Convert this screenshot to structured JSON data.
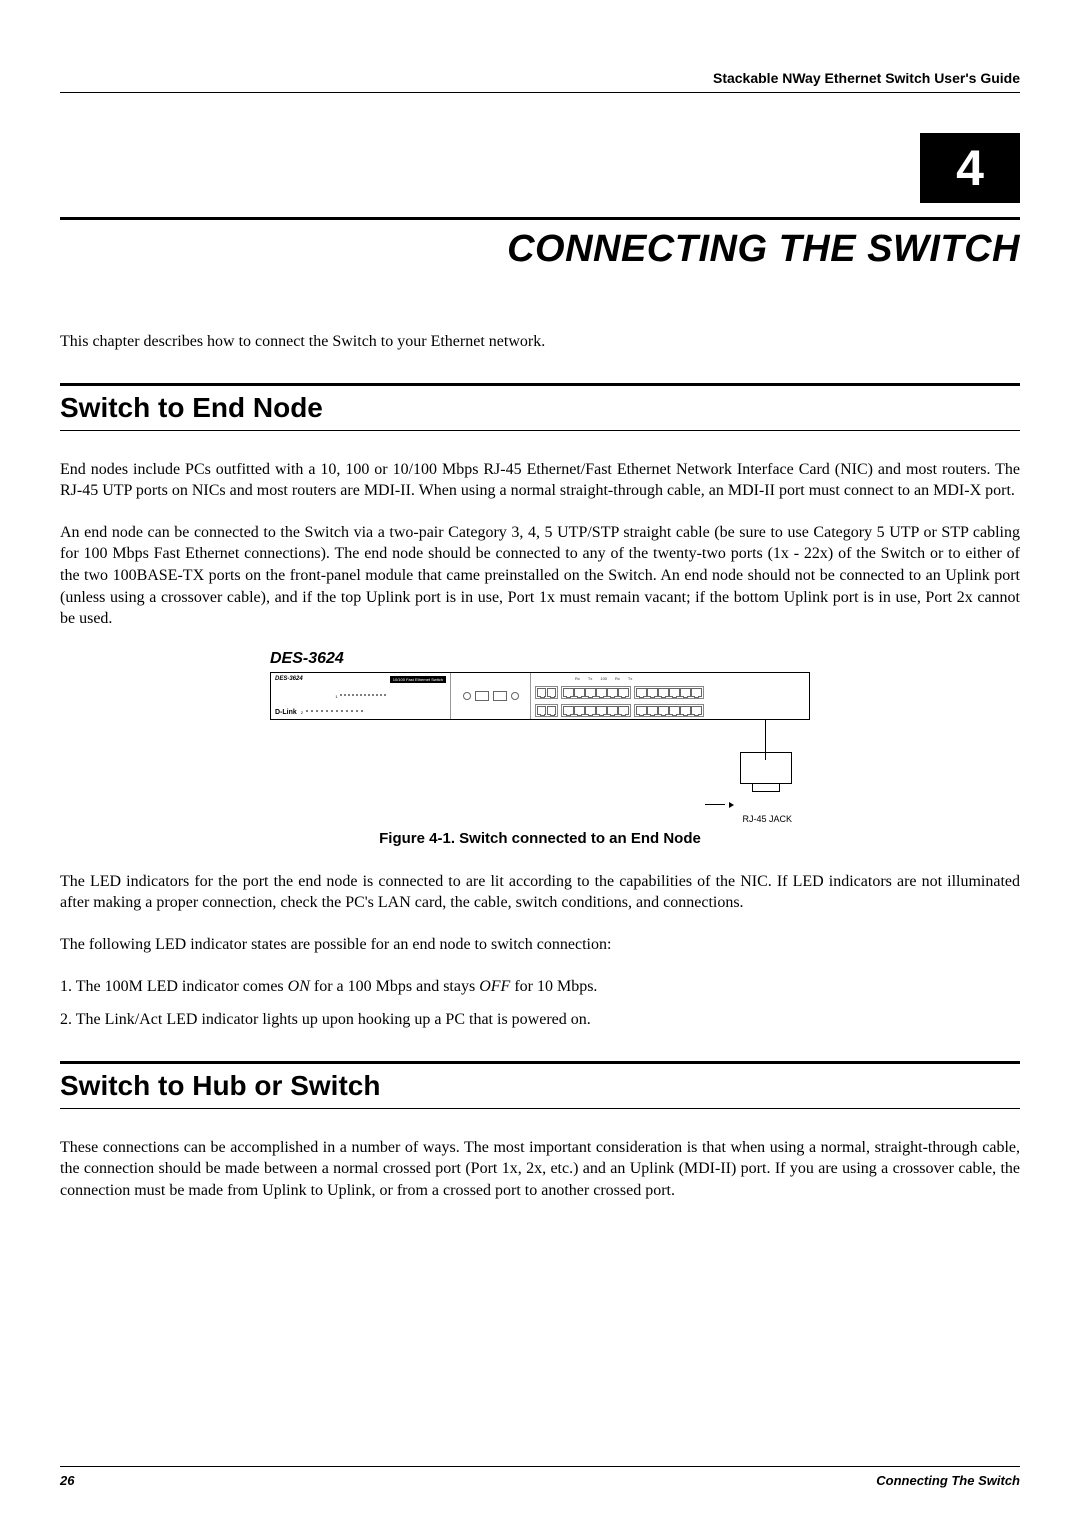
{
  "header": {
    "guide_title": "Stackable NWay Ethernet Switch User's Guide"
  },
  "chapter": {
    "number": "4",
    "title": "CONNECTING THE SWITCH"
  },
  "intro": "This chapter describes how to connect the Switch to your Ethernet network.",
  "section1": {
    "heading": "Switch to End Node",
    "p1": "End nodes include PCs outfitted with a 10, 100 or 10/100 Mbps RJ-45 Ethernet/Fast Ethernet Network Interface Card (NIC) and most routers. The RJ-45 UTP ports on NICs and most routers are MDI-II. When using a normal straight-through cable, an MDI-II port must connect to an MDI-X port.",
    "p2": "An end node can be connected to the Switch via a two-pair Category 3, 4, 5 UTP/STP straight cable (be sure to use Category 5 UTP or STP cabling for 100 Mbps Fast Ethernet connections). The end node should be connected to any of the twenty-two ports (1x - 22x) of the Switch or to either of the two 100BASE-TX ports on the front-panel module that came preinstalled on the Switch. An end node should not be connected to an Uplink port (unless using a crossover cable), and if the top Uplink port is in use, Port 1x must remain vacant; if the bottom Uplink port is in use, Port 2x cannot be used.",
    "figure": {
      "model_label": "DES-3624",
      "black_strip": "10/100 Fast Ethernet Switch",
      "brand": "D-Link",
      "rj45_label": "RJ-45 JACK",
      "caption": "Figure 4-1.  Switch connected to an End Node",
      "port_header": [
        "",
        "Rx",
        "Tx",
        "",
        "",
        "100",
        "",
        "Rx",
        "Tx",
        ""
      ],
      "port_bottom": [
        "1x",
        "3x",
        "5x",
        "7x",
        "9x",
        "11x",
        "13x",
        "15x"
      ]
    },
    "p3": "The LED indicators for the port the end node is connected to are lit according to the capabilities of the NIC. If LED indicators are not illuminated after making a proper connection, check the PC's LAN card, the cable, switch conditions, and connections.",
    "p4": "The following LED indicator states are possible for an end node to switch connection:",
    "li1_pre": "1.  The 100M LED indicator comes ",
    "li1_on": "ON",
    "li1_mid": " for a 100 Mbps and stays ",
    "li1_off": "OFF",
    "li1_post": " for 10 Mbps.",
    "li2": "2.  The Link/Act LED indicator lights up upon hooking up a PC that is powered on."
  },
  "section2": {
    "heading": "Switch to Hub or Switch",
    "p1": "These connections can be accomplished in a number of ways. The most important consideration is that when using a normal, straight-through cable, the connection should be made between a normal crossed port (Port 1x, 2x, etc.) and an Uplink (MDI-II) port. If you are using a crossover cable, the connection must be made from Uplink to Uplink, or from a crossed port to another crossed port."
  },
  "footer": {
    "page": "26",
    "section": "Connecting The Switch"
  },
  "colors": {
    "text": "#000000",
    "bg": "#ffffff"
  }
}
